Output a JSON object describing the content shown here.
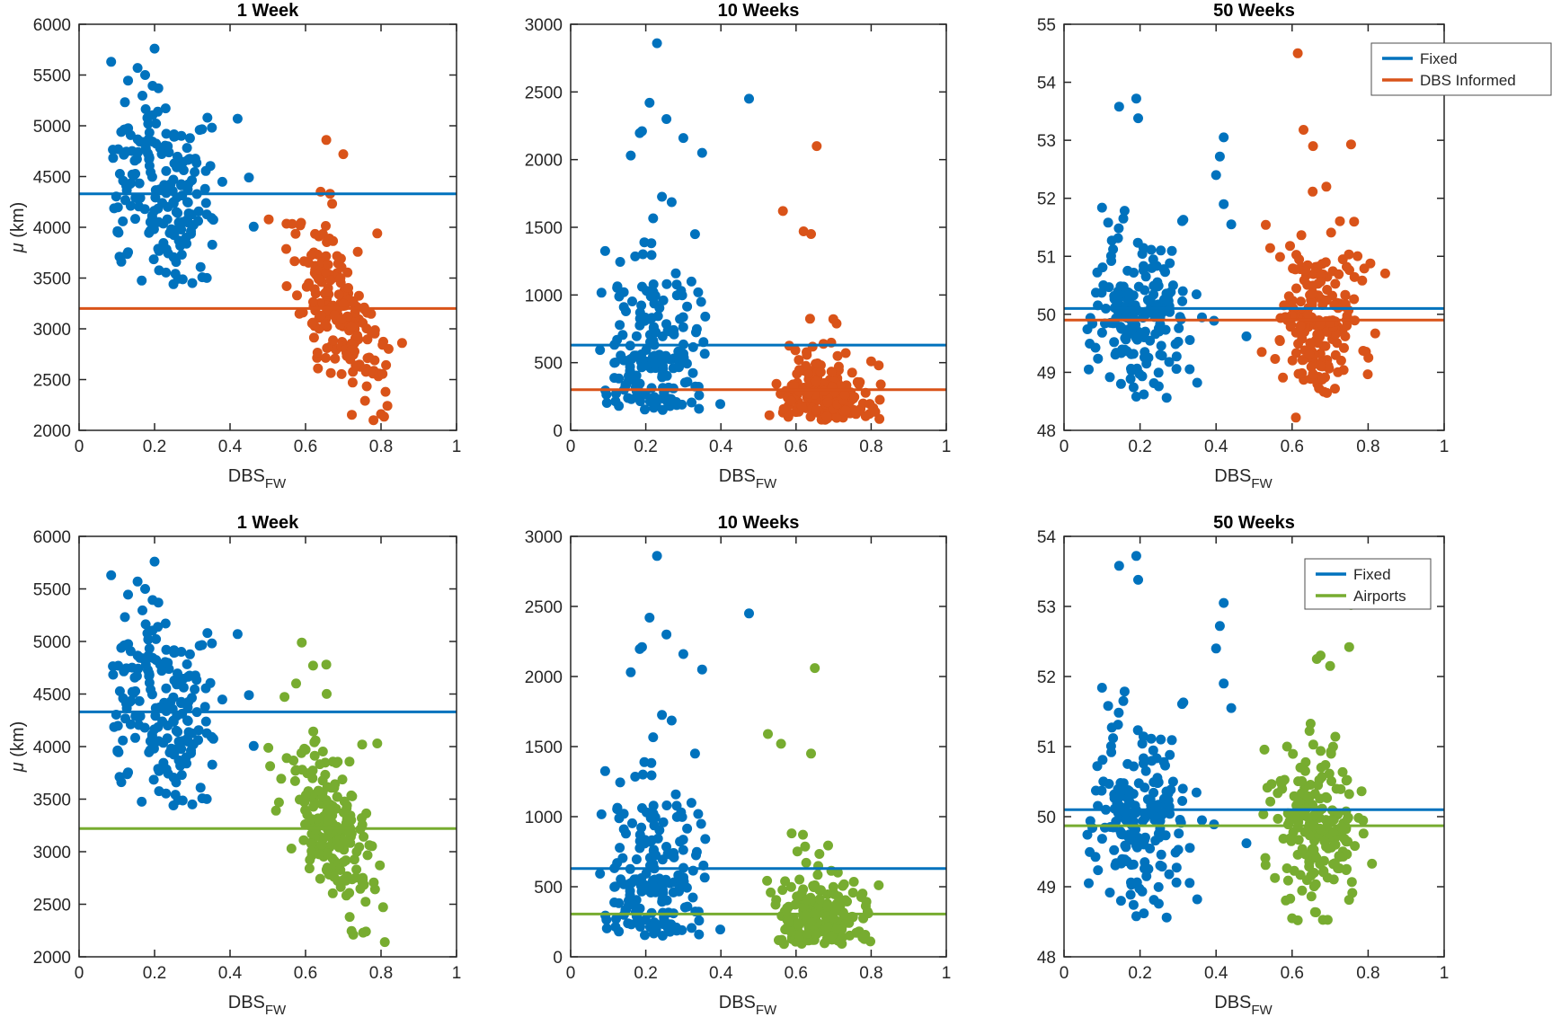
{
  "colors": {
    "fixed_blue": "#0072BD",
    "dbs_orange": "#D95319",
    "airports_green": "#77AC30",
    "axis": "#262626",
    "background": "#FFFFFF"
  },
  "chart_data": [
    {
      "type": "scatter",
      "title": "1 Week",
      "position": "top-left",
      "xlabel": {
        "text": "DBS",
        "sub": "FW"
      },
      "ylabel": {
        "mu": "μ",
        "rest": " (km)"
      },
      "xlim": [
        0,
        1
      ],
      "ylim": [
        2000,
        6000
      ],
      "xticks": [
        0,
        0.2,
        0.4,
        0.6,
        0.8,
        1
      ],
      "xticklabels": [
        "0",
        "0.2",
        "0.4",
        "0.6",
        "0.8",
        "1"
      ],
      "yticks": [
        2000,
        2500,
        3000,
        3500,
        4000,
        4500,
        5000,
        5500,
        6000
      ],
      "yticklabels": [
        "2000",
        "2500",
        "3000",
        "3500",
        "4000",
        "4500",
        "5000",
        "5500",
        "6000"
      ],
      "hlines": [
        {
          "name": "Fixed",
          "value": 4330,
          "color": "#0072BD"
        },
        {
          "name": "DBS Informed",
          "value": 3200,
          "color": "#D95319"
        }
      ],
      "series": [
        {
          "name": "Fixed",
          "color": "#0072BD",
          "n": 190,
          "seed": 101,
          "x": {
            "mean": 0.22,
            "std": 0.075,
            "min": 0.07,
            "max": 0.48
          },
          "y": {
            "dist": "normal",
            "mean": 4390,
            "std": 420,
            "slope": -1500,
            "min": 3440,
            "max": 5700
          },
          "outliers": [
            [
              0.2,
              5760
            ],
            [
              0.085,
              5630
            ],
            [
              0.155,
              5570
            ],
            [
              0.175,
              5500
            ],
            [
              0.21,
              5370
            ],
            [
              0.42,
              5070
            ],
            [
              0.34,
              5080
            ],
            [
              0.45,
              4490
            ],
            [
              0.3,
              3450
            ],
            [
              0.25,
              3440
            ]
          ]
        },
        {
          "name": "DBS Informed",
          "color": "#D95319",
          "n": 190,
          "seed": 202,
          "x": {
            "mean": 0.68,
            "std": 0.065,
            "min": 0.5,
            "max": 0.86
          },
          "y": {
            "dist": "normal",
            "mean": 3230,
            "std": 320,
            "slope": -4200,
            "min": 2080,
            "max": 4600
          },
          "outliers": [
            [
              0.655,
              4860
            ],
            [
              0.7,
              4720
            ],
            [
              0.64,
              4350
            ],
            [
              0.665,
              4330
            ],
            [
              0.79,
              3940
            ],
            [
              0.55,
              3420
            ],
            [
              0.8,
              2160
            ],
            [
              0.78,
              2100
            ]
          ]
        }
      ],
      "legend": null
    },
    {
      "type": "scatter",
      "title": "10 Weeks",
      "position": "top-middle",
      "xlabel": {
        "text": "DBS",
        "sub": "FW"
      },
      "ylabel": null,
      "xlim": [
        0,
        1
      ],
      "ylim": [
        0,
        3000
      ],
      "xticks": [
        0,
        0.2,
        0.4,
        0.6,
        0.8,
        1
      ],
      "xticklabels": [
        "0",
        "0.2",
        "0.4",
        "0.6",
        "0.8",
        "1"
      ],
      "yticks": [
        0,
        500,
        1000,
        1500,
        2000,
        2500,
        3000
      ],
      "yticklabels": [
        "0",
        "500",
        "1000",
        "1500",
        "2000",
        "2500",
        "3000"
      ],
      "hlines": [
        {
          "name": "Fixed",
          "value": 630,
          "color": "#0072BD"
        },
        {
          "name": "DBS Informed",
          "value": 300,
          "color": "#D95319"
        }
      ],
      "series": [
        {
          "name": "Fixed",
          "color": "#0072BD",
          "n": 190,
          "seed": 111,
          "x": {
            "mean": 0.22,
            "std": 0.075,
            "min": 0.07,
            "max": 0.48
          },
          "y": {
            "dist": "lognormal",
            "median": 550,
            "sigma": 0.62,
            "logslope": -0.4,
            "min": 150,
            "max": 2300
          },
          "outliers": [
            [
              0.23,
              2860
            ],
            [
              0.475,
              2450
            ],
            [
              0.21,
              2420
            ],
            [
              0.255,
              2300
            ],
            [
              0.3,
              2160
            ],
            [
              0.19,
              2210
            ],
            [
              0.16,
              2030
            ],
            [
              0.35,
              2050
            ]
          ]
        },
        {
          "name": "DBS Informed",
          "color": "#D95319",
          "n": 190,
          "seed": 212,
          "x": {
            "mean": 0.67,
            "std": 0.06,
            "min": 0.52,
            "max": 0.86
          },
          "y": {
            "dist": "lognormal",
            "median": 265,
            "sigma": 0.58,
            "logslope": -1.2,
            "min": 75,
            "max": 1480
          },
          "outliers": [
            [
              0.655,
              2100
            ],
            [
              0.565,
              1620
            ],
            [
              0.62,
              1470
            ],
            [
              0.64,
              1450
            ],
            [
              0.8,
              510
            ],
            [
              0.82,
              480
            ]
          ]
        }
      ],
      "legend": null
    },
    {
      "type": "scatter",
      "title": "50 Weeks",
      "position": "top-right",
      "xlabel": {
        "text": "DBS",
        "sub": "FW"
      },
      "ylabel": null,
      "xlim": [
        0,
        1
      ],
      "ylim": [
        48,
        55
      ],
      "xticks": [
        0,
        0.2,
        0.4,
        0.6,
        0.8,
        1
      ],
      "xticklabels": [
        "0",
        "0.2",
        "0.4",
        "0.6",
        "0.8",
        "1"
      ],
      "yticks": [
        48,
        49,
        50,
        51,
        52,
        53,
        54,
        55
      ],
      "yticklabels": [
        "48",
        "49",
        "50",
        "51",
        "52",
        "53",
        "54",
        "55"
      ],
      "hlines": [
        {
          "name": "Fixed",
          "value": 50.1,
          "color": "#0072BD"
        },
        {
          "name": "DBS Informed",
          "value": 49.9,
          "color": "#D95319"
        }
      ],
      "series": [
        {
          "name": "Fixed",
          "color": "#0072BD",
          "n": 190,
          "seed": 121,
          "x": {
            "mean": 0.21,
            "std": 0.075,
            "min": 0.05,
            "max": 0.48
          },
          "y": {
            "dist": "normal",
            "mean": 50.05,
            "std": 0.72,
            "slope": 0,
            "min": 48.55,
            "max": 53.4
          },
          "outliers": [
            [
              0.19,
              53.72
            ],
            [
              0.145,
              53.58
            ],
            [
              0.195,
              53.38
            ],
            [
              0.42,
              53.05
            ],
            [
              0.41,
              52.72
            ],
            [
              0.4,
              52.4
            ],
            [
              0.42,
              51.9
            ],
            [
              0.44,
              51.55
            ],
            [
              0.48,
              49.62
            ],
            [
              0.065,
              49.05
            ],
            [
              0.15,
              48.8
            ],
            [
              0.19,
              48.58
            ],
            [
              0.21,
              48.62
            ]
          ]
        },
        {
          "name": "DBS Informed",
          "color": "#D95319",
          "n": 190,
          "seed": 222,
          "x": {
            "mean": 0.67,
            "std": 0.06,
            "min": 0.5,
            "max": 0.85
          },
          "y": {
            "dist": "normal",
            "mean": 49.97,
            "std": 0.7,
            "slope": 0,
            "min": 48.6,
            "max": 52.5
          },
          "outliers": [
            [
              0.615,
              54.5
            ],
            [
              0.63,
              53.18
            ],
            [
              0.655,
              52.9
            ],
            [
              0.755,
              52.93
            ],
            [
              0.69,
              52.2
            ],
            [
              0.61,
              48.22
            ],
            [
              0.52,
              49.35
            ]
          ]
        }
      ],
      "legend": {
        "items": [
          {
            "label": "Fixed",
            "color": "#0072BD"
          },
          {
            "label": "DBS Informed",
            "color": "#D95319"
          }
        ]
      }
    },
    {
      "type": "scatter",
      "title": "1 Week",
      "position": "bottom-left",
      "xlabel": {
        "text": "DBS",
        "sub": "FW"
      },
      "ylabel": {
        "mu": "μ",
        "rest": " (km)"
      },
      "xlim": [
        0,
        1
      ],
      "ylim": [
        2000,
        6000
      ],
      "xticks": [
        0,
        0.2,
        0.4,
        0.6,
        0.8,
        1
      ],
      "xticklabels": [
        "0",
        "0.2",
        "0.4",
        "0.6",
        "0.8",
        "1"
      ],
      "yticks": [
        2000,
        2500,
        3000,
        3500,
        4000,
        4500,
        5000,
        5500,
        6000
      ],
      "yticklabels": [
        "2000",
        "2500",
        "3000",
        "3500",
        "4000",
        "4500",
        "5000",
        "5500",
        "6000"
      ],
      "hlines": [
        {
          "name": "Fixed",
          "value": 4330,
          "color": "#0072BD"
        },
        {
          "name": "Airports",
          "value": 3220,
          "color": "#77AC30"
        }
      ],
      "series": [
        {
          "name": "Fixed",
          "color": "#0072BD",
          "n": 190,
          "seed": 101,
          "x": {
            "mean": 0.22,
            "std": 0.075,
            "min": 0.07,
            "max": 0.48
          },
          "y": {
            "dist": "normal",
            "mean": 4390,
            "std": 420,
            "slope": -1500,
            "min": 3440,
            "max": 5700
          },
          "outliers": [
            [
              0.2,
              5760
            ],
            [
              0.085,
              5630
            ],
            [
              0.155,
              5570
            ],
            [
              0.175,
              5500
            ],
            [
              0.21,
              5370
            ],
            [
              0.42,
              5070
            ],
            [
              0.34,
              5080
            ],
            [
              0.45,
              4490
            ],
            [
              0.3,
              3450
            ],
            [
              0.25,
              3440
            ]
          ]
        },
        {
          "name": "Airports",
          "color": "#77AC30",
          "n": 190,
          "seed": 302,
          "x": {
            "mean": 0.67,
            "std": 0.065,
            "min": 0.5,
            "max": 0.83
          },
          "y": {
            "dist": "normal",
            "mean": 3250,
            "std": 320,
            "slope": -4200,
            "min": 2120,
            "max": 4600
          },
          "outliers": [
            [
              0.59,
              4990
            ],
            [
              0.655,
              4780
            ],
            [
              0.62,
              4770
            ],
            [
              0.575,
              4600
            ],
            [
              0.79,
              4030
            ],
            [
              0.75,
              4020
            ],
            [
              0.81,
              2140
            ],
            [
              0.76,
              2240
            ]
          ]
        }
      ],
      "legend": null
    },
    {
      "type": "scatter",
      "title": "10 Weeks",
      "position": "bottom-middle",
      "xlabel": {
        "text": "DBS",
        "sub": "FW"
      },
      "ylabel": null,
      "xlim": [
        0,
        1
      ],
      "ylim": [
        0,
        3000
      ],
      "xticks": [
        0,
        0.2,
        0.4,
        0.6,
        0.8,
        1
      ],
      "xticklabels": [
        "0",
        "0.2",
        "0.4",
        "0.6",
        "0.8",
        "1"
      ],
      "yticks": [
        0,
        500,
        1000,
        1500,
        2000,
        2500,
        3000
      ],
      "yticklabels": [
        "0",
        "500",
        "1000",
        "1500",
        "2000",
        "2500",
        "3000"
      ],
      "hlines": [
        {
          "name": "Fixed",
          "value": 630,
          "color": "#0072BD"
        },
        {
          "name": "Airports",
          "value": 305,
          "color": "#77AC30"
        }
      ],
      "series": [
        {
          "name": "Fixed",
          "color": "#0072BD",
          "n": 190,
          "seed": 111,
          "x": {
            "mean": 0.22,
            "std": 0.075,
            "min": 0.07,
            "max": 0.48
          },
          "y": {
            "dist": "lognormal",
            "median": 550,
            "sigma": 0.62,
            "logslope": -0.4,
            "min": 150,
            "max": 2300
          },
          "outliers": [
            [
              0.23,
              2860
            ],
            [
              0.475,
              2450
            ],
            [
              0.21,
              2420
            ],
            [
              0.255,
              2300
            ],
            [
              0.3,
              2160
            ],
            [
              0.19,
              2210
            ],
            [
              0.16,
              2030
            ],
            [
              0.35,
              2050
            ]
          ]
        },
        {
          "name": "Airports",
          "color": "#77AC30",
          "n": 190,
          "seed": 312,
          "x": {
            "mean": 0.66,
            "std": 0.06,
            "min": 0.52,
            "max": 0.83
          },
          "y": {
            "dist": "lognormal",
            "median": 262,
            "sigma": 0.58,
            "logslope": -1.2,
            "min": 90,
            "max": 1480
          },
          "outliers": [
            [
              0.65,
              2060
            ],
            [
              0.525,
              1590
            ],
            [
              0.56,
              1520
            ],
            [
              0.64,
              1450
            ],
            [
              0.82,
              510
            ]
          ]
        }
      ],
      "legend": null
    },
    {
      "type": "scatter",
      "title": "50 Weeks",
      "position": "bottom-right",
      "xlabel": {
        "text": "DBS",
        "sub": "FW"
      },
      "ylabel": null,
      "xlim": [
        0,
        1
      ],
      "ylim": [
        48,
        54
      ],
      "xticks": [
        0,
        0.2,
        0.4,
        0.6,
        0.8,
        1
      ],
      "xticklabels": [
        "0",
        "0.2",
        "0.4",
        "0.6",
        "0.8",
        "1"
      ],
      "yticks": [
        48,
        49,
        50,
        51,
        52,
        53,
        54
      ],
      "yticklabels": [
        "48",
        "49",
        "50",
        "51",
        "52",
        "53",
        "54"
      ],
      "hlines": [
        {
          "name": "Fixed",
          "value": 50.1,
          "color": "#0072BD"
        },
        {
          "name": "Airports",
          "value": 49.87,
          "color": "#77AC30"
        }
      ],
      "series": [
        {
          "name": "Fixed",
          "color": "#0072BD",
          "n": 190,
          "seed": 121,
          "x": {
            "mean": 0.21,
            "std": 0.075,
            "min": 0.05,
            "max": 0.48
          },
          "y": {
            "dist": "normal",
            "mean": 50.05,
            "std": 0.72,
            "slope": 0,
            "min": 48.55,
            "max": 53.4
          },
          "outliers": [
            [
              0.19,
              53.72
            ],
            [
              0.145,
              53.58
            ],
            [
              0.195,
              53.38
            ],
            [
              0.42,
              53.05
            ],
            [
              0.41,
              52.72
            ],
            [
              0.4,
              52.4
            ],
            [
              0.42,
              51.9
            ],
            [
              0.44,
              51.55
            ],
            [
              0.48,
              49.62
            ],
            [
              0.065,
              49.05
            ],
            [
              0.15,
              48.8
            ],
            [
              0.19,
              48.58
            ],
            [
              0.21,
              48.62
            ]
          ]
        },
        {
          "name": "Airports",
          "color": "#77AC30",
          "n": 190,
          "seed": 322,
          "x": {
            "mean": 0.66,
            "std": 0.06,
            "min": 0.5,
            "max": 0.82
          },
          "y": {
            "dist": "normal",
            "mean": 49.85,
            "std": 0.62,
            "slope": 0,
            "min": 48.5,
            "max": 52.0
          },
          "outliers": [
            [
              0.755,
              53.02
            ],
            [
              0.75,
              52.42
            ],
            [
              0.675,
              52.3
            ],
            [
              0.665,
              52.25
            ],
            [
              0.7,
              52.15
            ],
            [
              0.615,
              48.52
            ],
            [
              0.6,
              48.55
            ]
          ]
        }
      ],
      "legend": {
        "items": [
          {
            "label": "Fixed",
            "color": "#0072BD"
          },
          {
            "label": "Airports",
            "color": "#77AC30"
          }
        ]
      }
    }
  ]
}
